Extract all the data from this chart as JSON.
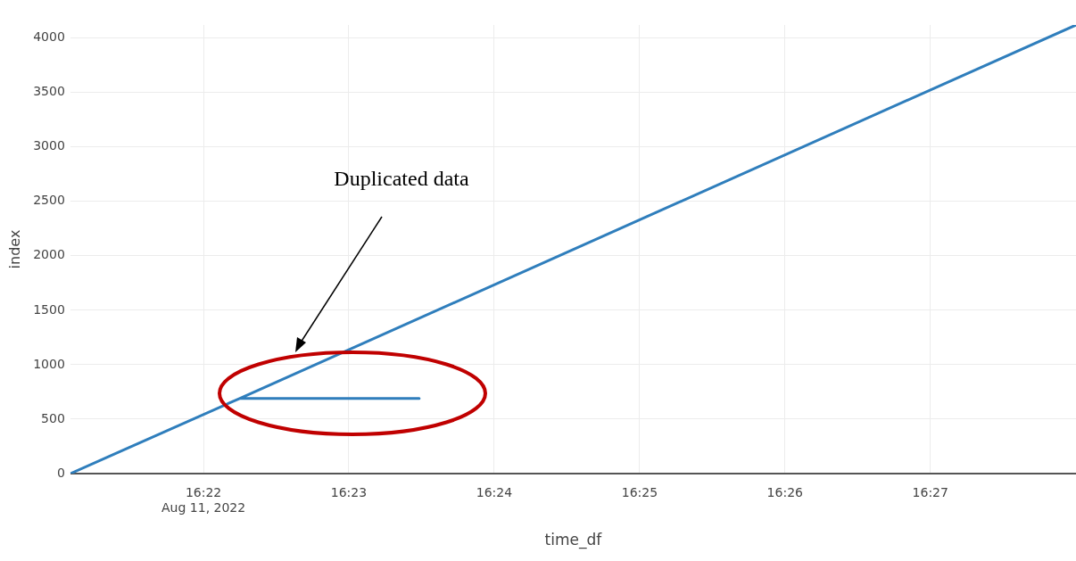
{
  "chart_data": {
    "type": "line",
    "xlabel": "time_df",
    "ylabel": "index",
    "series": [
      {
        "color": "#2f7ebc",
        "x": [
          16.3514,
          16.3708,
          16.3914,
          16.3708,
          16.4667
        ],
        "values": [
          0,
          690,
          690,
          690,
          4120
        ]
      }
    ],
    "xlim": [
      16.3514,
      16.4667
    ],
    "xticks": [
      {
        "value": 16.36667,
        "label": "16:22\nAug 11, 2022"
      },
      {
        "value": 16.38333,
        "label": "16:23"
      },
      {
        "value": 16.4,
        "label": "16:24"
      },
      {
        "value": 16.41667,
        "label": "16:25"
      },
      {
        "value": 16.43333,
        "label": "16:26"
      },
      {
        "value": 16.45,
        "label": "16:27"
      }
    ],
    "ylim": [
      0,
      4120
    ],
    "yticks": [
      0,
      500,
      1000,
      1500,
      2000,
      2500,
      3000,
      3500,
      4000
    ],
    "grid": true,
    "legend": false,
    "marker": "none",
    "line_style": "solid",
    "annotations": [
      "Duplicated data"
    ]
  }
}
